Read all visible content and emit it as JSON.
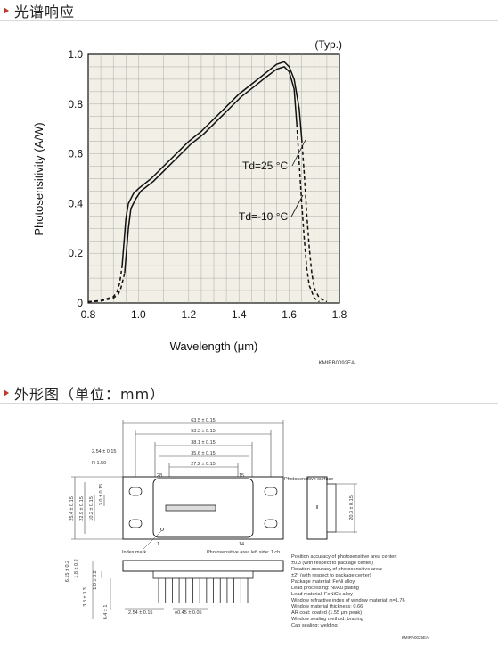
{
  "section1": {
    "title": "光谱响应"
  },
  "section2": {
    "title": "外形图（单位：mm）"
  },
  "chart_data": {
    "type": "line",
    "title": "",
    "typ_label": "(Typ.)",
    "xlabel": "Wavelength (μm)",
    "ylabel": "Photosensitivity (A/W)",
    "xlim": [
      0.8,
      1.8
    ],
    "ylim": [
      0,
      1.0
    ],
    "xticks": [
      "0.8",
      "1.0",
      "1.2",
      "1.4",
      "1.6",
      "1.8"
    ],
    "yticks": [
      "0",
      "0.2",
      "0.4",
      "0.6",
      "0.8",
      "1.0"
    ],
    "grid": true,
    "figure_code": "KMIRB0092EA",
    "series": [
      {
        "name": "Td=25 °C",
        "dashed_x": [
          0.8,
          0.85,
          0.9,
          0.915,
          0.925,
          0.935
        ],
        "dashed_y": [
          0.005,
          0.01,
          0.025,
          0.045,
          0.08,
          0.15
        ],
        "x": [
          0.935,
          0.95,
          0.96,
          0.98,
          1.0,
          1.05,
          1.1,
          1.15,
          1.2,
          1.25,
          1.3,
          1.35,
          1.4,
          1.45,
          1.5,
          1.55,
          1.58,
          1.6,
          1.62,
          1.64,
          1.65
        ],
        "y": [
          0.15,
          0.34,
          0.4,
          0.44,
          0.46,
          0.5,
          0.55,
          0.6,
          0.65,
          0.69,
          0.74,
          0.79,
          0.84,
          0.88,
          0.92,
          0.96,
          0.97,
          0.95,
          0.9,
          0.78,
          0.66
        ],
        "tail_x": [
          1.65,
          1.66,
          1.67,
          1.68,
          1.69,
          1.7,
          1.72,
          1.75
        ],
        "tail_y": [
          0.66,
          0.52,
          0.36,
          0.22,
          0.12,
          0.06,
          0.02,
          0.005
        ]
      },
      {
        "name": "Td=-10 °C",
        "dashed_x": [
          0.8,
          0.85,
          0.9,
          0.92,
          0.93,
          0.945
        ],
        "dashed_y": [
          0.005,
          0.008,
          0.02,
          0.035,
          0.06,
          0.12
        ],
        "x": [
          0.945,
          0.96,
          0.97,
          0.99,
          1.01,
          1.06,
          1.11,
          1.16,
          1.21,
          1.26,
          1.31,
          1.36,
          1.41,
          1.46,
          1.51,
          1.55,
          1.58,
          1.6,
          1.62,
          1.63
        ],
        "y": [
          0.12,
          0.3,
          0.38,
          0.42,
          0.45,
          0.49,
          0.54,
          0.59,
          0.64,
          0.68,
          0.73,
          0.78,
          0.83,
          0.87,
          0.91,
          0.94,
          0.95,
          0.93,
          0.86,
          0.72
        ],
        "tail_x": [
          1.63,
          1.64,
          1.65,
          1.66,
          1.67,
          1.68,
          1.7,
          1.72
        ],
        "tail_y": [
          0.72,
          0.56,
          0.4,
          0.26,
          0.14,
          0.07,
          0.02,
          0.005
        ]
      }
    ]
  },
  "drawing": {
    "dims_top": [
      "63.5 ± 0.15",
      "53.3 ± 0.15",
      "38.1 ± 0.15",
      "35.6 ± 0.15",
      "27.2 ± 0.15"
    ],
    "dim_254": "2.54 ± 0.15",
    "radius": "R 1.59",
    "pin28": "28",
    "pin15": "15",
    "pin1": "1",
    "pin14": "14",
    "dims_left": [
      "25.4 ± 0.15",
      "22.9 ± 0.15",
      "10.2 ± 0.15",
      "3.0 ± 0.15"
    ],
    "index_mark": "Index mark",
    "photosensitive_caption": "Photosensitive area left side: 1 ch",
    "photosensitive_surface": "Photosensitive surface",
    "dim_right": "20.3 ± 0.15",
    "dims_side": [
      "6.15 ± 0.2",
      "1.8 ± 0.2",
      "1.0 ± 0.2",
      "3.8 ± 0.3",
      "6.4 ± 1"
    ],
    "dim_bottom_pitch": "2.54 ± 0.15",
    "dim_bottom_lead": "ϕ0.45 ± 0.05",
    "notes": [
      "Position accuracy of photosensitive area center:",
      "  ±0.3 (with respect to package center)",
      "Rotation accuracy of photosensitive area:",
      "  ±2° (with respect to package center)",
      "Package material: FeNi alloy",
      "Lead processing: Ni/Au plating",
      "Lead material: FeNiCo alloy",
      "Window refractive index of window material: n=1.76",
      "Window material thickness: 0.66",
      "AR coat: coated (1.55 μm peak)",
      "Window sealing method: brazing",
      "Cap sealing: welding"
    ],
    "drawing_code": "KMIRA0025EA"
  }
}
